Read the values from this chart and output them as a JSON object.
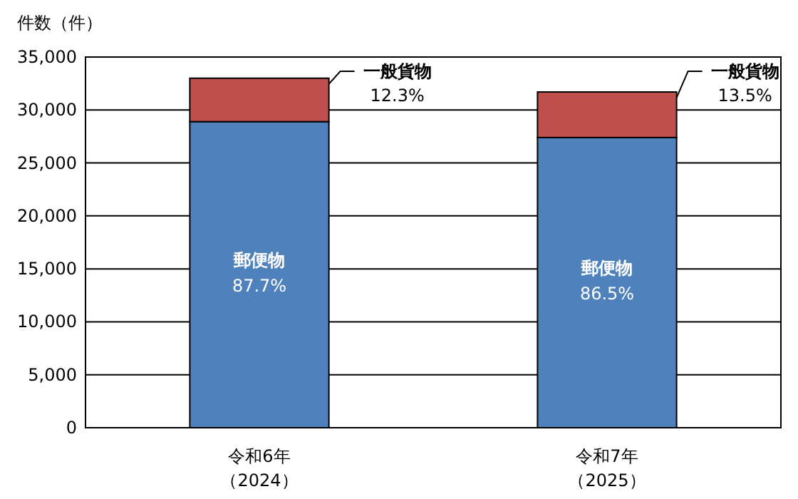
{
  "chart_data": {
    "type": "bar",
    "stacked": true,
    "ylabel": "件数（件）",
    "categories": [
      "令和6年（2024）",
      "令和7年（2025）"
    ],
    "series": [
      {
        "name": "郵便物",
        "color": "#4f81bd",
        "values": [
          28900,
          27400
        ]
      },
      {
        "name": "一般貨物",
        "color": "#c0504d",
        "values": [
          4100,
          4300
        ]
      }
    ],
    "annotations": [
      "87.7%",
      "86.5%",
      "12.3%",
      "13.5%"
    ],
    "ylim": [
      0,
      35000
    ],
    "yticks": [
      {
        "value": 0,
        "label": "0"
      },
      {
        "value": 5000,
        "label": "5,000"
      },
      {
        "value": 10000,
        "label": "10,000"
      },
      {
        "value": 15000,
        "label": "15,000"
      },
      {
        "value": 20000,
        "label": "20,000"
      },
      {
        "value": 25000,
        "label": "25,000"
      },
      {
        "value": 30000,
        "label": "30,000"
      },
      {
        "value": 35000,
        "label": "35,000"
      }
    ],
    "grid": "y"
  }
}
